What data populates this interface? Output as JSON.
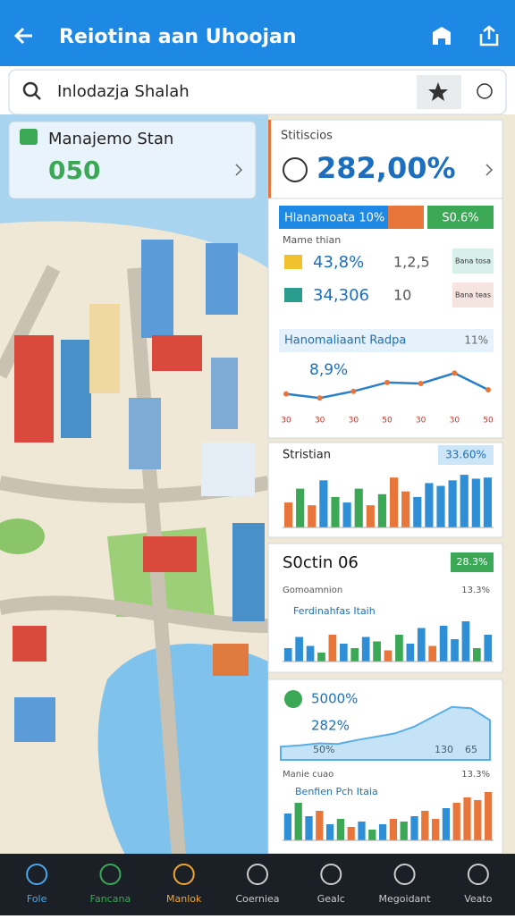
{
  "header": {
    "title": "Reiotina aan Uhoojan"
  },
  "search": {
    "placeholder": "Inlodazja Shalah"
  },
  "left_card": {
    "title": "Manajemo Stan",
    "value": "050"
  },
  "stats_card": {
    "title": "Stitiscios",
    "value": "282,00%"
  },
  "summary": {
    "bar_label": "Hlanamoata 10%",
    "bar_value": "S0.6%",
    "subtitle": "Mame thian",
    "rows": [
      {
        "value": "43,8%",
        "mid": "1,2,5",
        "badge": "Bana tosa"
      },
      {
        "value": "34,306",
        "mid": "10",
        "badge": "Bana teas"
      }
    ]
  },
  "line_panel": {
    "title": "Hanomaliaant Radpa",
    "corner": "11%",
    "value": "8,9%",
    "x": [
      "30",
      "30",
      "30",
      "50",
      "30",
      "30",
      "50"
    ],
    "ylim": [
      0,
      100
    ],
    "values": [
      30,
      22,
      35,
      52,
      50,
      70,
      38
    ],
    "color": "#2a7fc9"
  },
  "bars1": {
    "title": "Stristian",
    "badge": "33.60%",
    "ylim": [
      0,
      100
    ],
    "values": [
      45,
      70,
      40,
      85,
      55,
      45,
      70,
      40,
      60,
      90,
      65,
      55,
      80,
      75,
      85,
      95,
      88,
      90
    ],
    "colors": [
      "#e8763a",
      "#3aa854",
      "#e8763a",
      "#2f8fd6",
      "#3aa854",
      "#2f8fd6",
      "#3aa854",
      "#e8763a",
      "#3aa854",
      "#e8763a",
      "#e8763a",
      "#2f8fd6",
      "#2f8fd6",
      "#2f8fd6",
      "#2f8fd6",
      "#2f8fd6",
      "#2f8fd6",
      "#2f8fd6"
    ]
  },
  "bars2": {
    "title": "S0ctin 06",
    "badge": "28.3%",
    "subtitle": "Gomoamnion",
    "corner": "13.3%",
    "caption": "Ferdinahfas Itaih",
    "ylim": [
      0,
      100
    ],
    "values": [
      30,
      55,
      35,
      20,
      60,
      40,
      30,
      55,
      45,
      25,
      60,
      40,
      75,
      35,
      80,
      50,
      90,
      30,
      60
    ],
    "colors": [
      "#2f8fd6",
      "#2f8fd6",
      "#2f8fd6",
      "#3aa854",
      "#e8763a",
      "#2f8fd6",
      "#3aa854",
      "#2f8fd6",
      "#3aa854",
      "#e8763a",
      "#3aa854",
      "#2f8fd6",
      "#2f8fd6",
      "#e8763a",
      "#2f8fd6",
      "#2f8fd6",
      "#2f8fd6",
      "#3aa854",
      "#2f8fd6"
    ]
  },
  "area_panel": {
    "value1": "5000%",
    "value2": "282%",
    "value3": "50%",
    "tick1": "130",
    "tick2": "65",
    "ylim": [
      0,
      100
    ],
    "values": [
      20,
      22,
      25,
      24,
      30,
      35,
      40,
      50,
      65,
      80,
      78,
      60
    ],
    "color": "#5aaee6"
  },
  "bars3": {
    "subtitle": "Manie cuao",
    "corner": "13.3%",
    "caption": "Benfien Pch Itaia",
    "ylim": [
      0,
      100
    ],
    "values": [
      50,
      70,
      45,
      55,
      30,
      40,
      25,
      35,
      20,
      30,
      40,
      35,
      45,
      55,
      40,
      60,
      70,
      80,
      75,
      90
    ],
    "colors": [
      "#2f8fd6",
      "#3aa854",
      "#2f8fd6",
      "#e8763a",
      "#2f8fd6",
      "#3aa854",
      "#e8763a",
      "#2f8fd6",
      "#3aa854",
      "#2f8fd6",
      "#e8763a",
      "#3aa854",
      "#2f8fd6",
      "#e8763a",
      "#e8763a",
      "#2f8fd6",
      "#e8763a",
      "#e8763a",
      "#e8763a",
      "#e8763a"
    ]
  },
  "nav": [
    "Fole",
    "Fancana",
    "Manlok",
    "Coerniea",
    "Gealc",
    "Megoidant",
    "Veato"
  ]
}
